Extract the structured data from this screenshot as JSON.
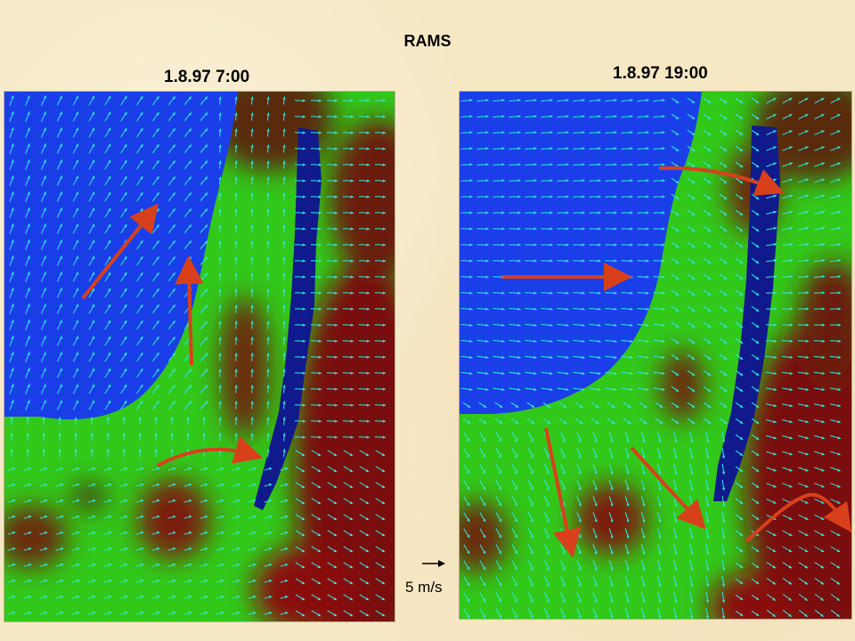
{
  "title": "RAMS",
  "panels": [
    {
      "label": "1.8.97 7:00"
    },
    {
      "label": "1.8.97 19:00"
    }
  ],
  "scale": {
    "label": "5 m/s"
  },
  "colors": {
    "sea": "#1a3fe8",
    "land_low": "#32c81a",
    "land_high": "#7a0f08",
    "river": "#101a8c",
    "wind_vectors": "#2ee8e0",
    "flow_arrows": "#d8401c",
    "background": "#f7e8c4"
  }
}
